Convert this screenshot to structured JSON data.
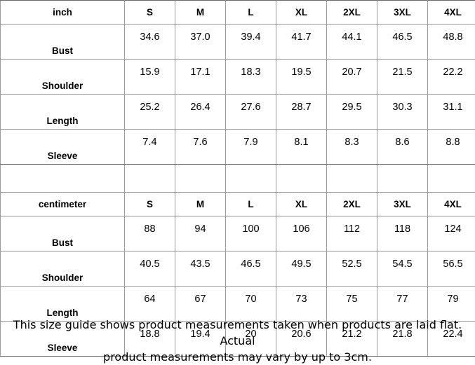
{
  "inch_table": {
    "unit_label": "inch",
    "sizes": [
      "S",
      "M",
      "L",
      "XL",
      "2XL",
      "3XL",
      "4XL"
    ],
    "rows": [
      {
        "label": "Bust",
        "values": [
          "34.6",
          "37.0",
          "39.4",
          "41.7",
          "44.1",
          "46.5",
          "48.8"
        ]
      },
      {
        "label": "Shoulder",
        "values": [
          "15.9",
          "17.1",
          "18.3",
          "19.5",
          "20.7",
          "21.5",
          "22.2"
        ]
      },
      {
        "label": "Length",
        "values": [
          "25.2",
          "26.4",
          "27.6",
          "28.7",
          "29.5",
          "30.3",
          "31.1"
        ]
      },
      {
        "label": "Sleeve",
        "values": [
          "7.4",
          "7.6",
          "7.9",
          "8.1",
          "8.3",
          "8.6",
          "8.8"
        ]
      }
    ]
  },
  "cm_table": {
    "unit_label": "centimeter",
    "sizes": [
      "S",
      "M",
      "L",
      "XL",
      "2XL",
      "3XL",
      "4XL"
    ],
    "rows": [
      {
        "label": "Bust",
        "values": [
          "88",
          "94",
          "100",
          "106",
          "112",
          "118",
          "124"
        ]
      },
      {
        "label": "Shoulder",
        "values": [
          "40.5",
          "43.5",
          "46.5",
          "49.5",
          "52.5",
          "54.5",
          "56.5"
        ]
      },
      {
        "label": "Length",
        "values": [
          "64",
          "67",
          "70",
          "73",
          "75",
          "77",
          "79"
        ]
      },
      {
        "label": "Sleeve",
        "values": [
          "18.8",
          "19.4",
          "20",
          "20.6",
          "21.2",
          "21.8",
          "22.4"
        ]
      }
    ]
  },
  "note": {
    "line1": "This size guide shows product measurements taken when products are laid flat. Actual",
    "line2": "product measurements may vary by up to 3cm."
  }
}
